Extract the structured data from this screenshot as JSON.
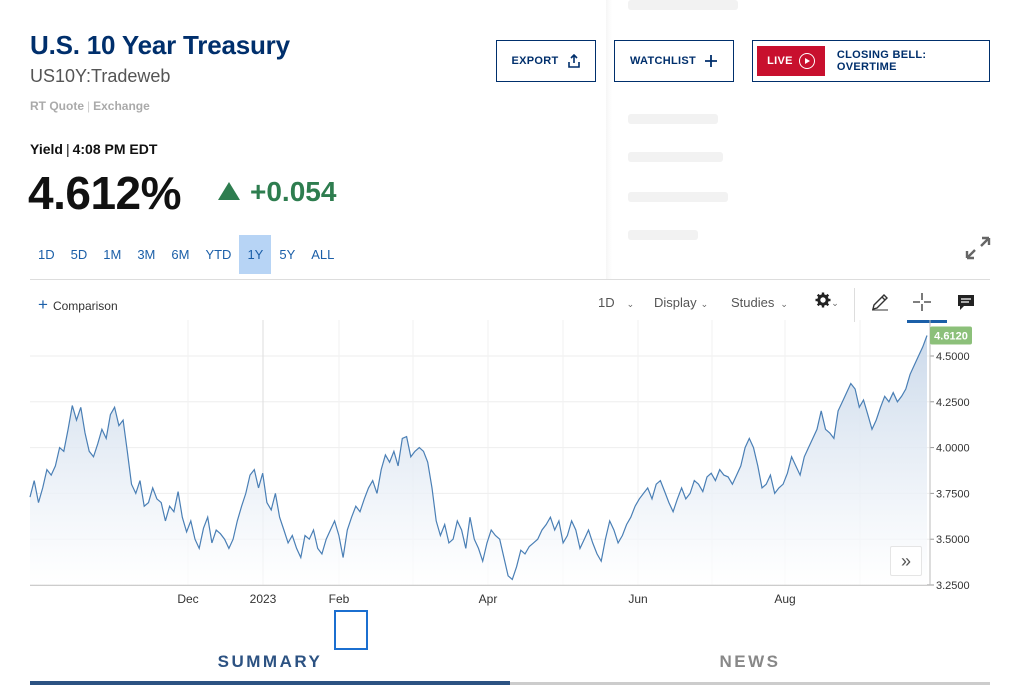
{
  "header": {
    "title": "U.S. 10 Year Treasury",
    "symbol": "US10Y:Tradeweb",
    "quote_source": "RT Quote",
    "exchange": "Exchange",
    "export_label": "EXPORT",
    "watchlist_label": "WATCHLIST",
    "live_label": "LIVE",
    "live_show": "CLOSING BELL: OVERTIME"
  },
  "quote": {
    "label": "Yield",
    "time": "4:08 PM EDT",
    "price": "4.612%",
    "change": "+0.054",
    "change_color": "#2e7d4f"
  },
  "ranges": [
    "1D",
    "5D",
    "1M",
    "3M",
    "6M",
    "YTD",
    "1Y",
    "5Y",
    "ALL"
  ],
  "active_range": "1Y",
  "toolbar": {
    "comparison": "Comparison",
    "interval": "1D",
    "display": "Display",
    "studies": "Studies",
    "icons": [
      "gear-icon",
      "pencil-icon",
      "crosshair-icon",
      "comment-icon"
    ]
  },
  "chart_data": {
    "type": "area",
    "title": "",
    "xlabel": "",
    "ylabel": "",
    "x_ticks": [
      "Dec",
      "2023",
      "Feb",
      "Apr",
      "Jun",
      "Aug"
    ],
    "y_ticks": [
      "3.2500",
      "3.5000",
      "3.7500",
      "4.0000",
      "4.2500",
      "4.5000"
    ],
    "ylim": [
      3.25,
      4.62
    ],
    "last_value_label": "4.6120",
    "last_value": 4.612,
    "line_color": "#4a7fb5",
    "fill_color": "#c9d8ea",
    "series": [
      {
        "values": [
          3.73,
          3.82,
          3.7,
          3.78,
          3.88,
          3.85,
          3.9,
          4.0,
          3.98,
          4.1,
          4.23,
          4.15,
          4.22,
          4.08,
          3.98,
          3.95,
          4.02,
          4.1,
          4.05,
          4.18,
          4.22,
          4.12,
          4.15,
          3.98,
          3.8,
          3.75,
          3.82,
          3.68,
          3.7,
          3.78,
          3.72,
          3.7,
          3.6,
          3.68,
          3.65,
          3.76,
          3.62,
          3.54,
          3.6,
          3.5,
          3.45,
          3.56,
          3.62,
          3.48,
          3.55,
          3.53,
          3.5,
          3.45,
          3.5,
          3.6,
          3.68,
          3.75,
          3.85,
          3.88,
          3.78,
          3.86,
          3.7,
          3.66,
          3.75,
          3.62,
          3.55,
          3.48,
          3.52,
          3.45,
          3.4,
          3.52,
          3.5,
          3.55,
          3.45,
          3.42,
          3.5,
          3.55,
          3.6,
          3.52,
          3.4,
          3.55,
          3.62,
          3.68,
          3.65,
          3.72,
          3.78,
          3.82,
          3.75,
          3.88,
          3.96,
          3.92,
          3.98,
          3.9,
          4.05,
          4.06,
          3.95,
          3.98,
          4.0,
          3.98,
          3.92,
          3.78,
          3.6,
          3.52,
          3.58,
          3.48,
          3.5,
          3.6,
          3.55,
          3.45,
          3.62,
          3.5,
          3.45,
          3.38,
          3.48,
          3.55,
          3.52,
          3.5,
          3.4,
          3.3,
          3.28,
          3.35,
          3.44,
          3.42,
          3.46,
          3.48,
          3.5,
          3.55,
          3.58,
          3.62,
          3.55,
          3.6,
          3.48,
          3.52,
          3.6,
          3.55,
          3.45,
          3.5,
          3.55,
          3.48,
          3.42,
          3.38,
          3.5,
          3.6,
          3.55,
          3.48,
          3.52,
          3.58,
          3.62,
          3.68,
          3.72,
          3.75,
          3.78,
          3.72,
          3.8,
          3.82,
          3.76,
          3.7,
          3.65,
          3.72,
          3.78,
          3.72,
          3.75,
          3.82,
          3.8,
          3.76,
          3.84,
          3.86,
          3.82,
          3.88,
          3.85,
          3.84,
          3.8,
          3.85,
          3.9,
          4.0,
          4.05,
          4.0,
          3.9,
          3.78,
          3.8,
          3.85,
          3.75,
          3.78,
          3.8,
          3.86,
          3.95,
          3.9,
          3.85,
          3.95,
          4.0,
          4.05,
          4.1,
          4.2,
          4.1,
          4.08,
          4.05,
          4.2,
          4.25,
          4.3,
          4.35,
          4.32,
          4.22,
          4.26,
          4.18,
          4.1,
          4.15,
          4.22,
          4.28,
          4.25,
          4.3,
          4.25,
          4.28,
          4.32,
          4.4,
          4.45,
          4.5,
          4.55,
          4.612
        ]
      }
    ],
    "grid": true
  },
  "tabs": {
    "summary": "SUMMARY",
    "news": "NEWS",
    "active": "SUMMARY"
  }
}
